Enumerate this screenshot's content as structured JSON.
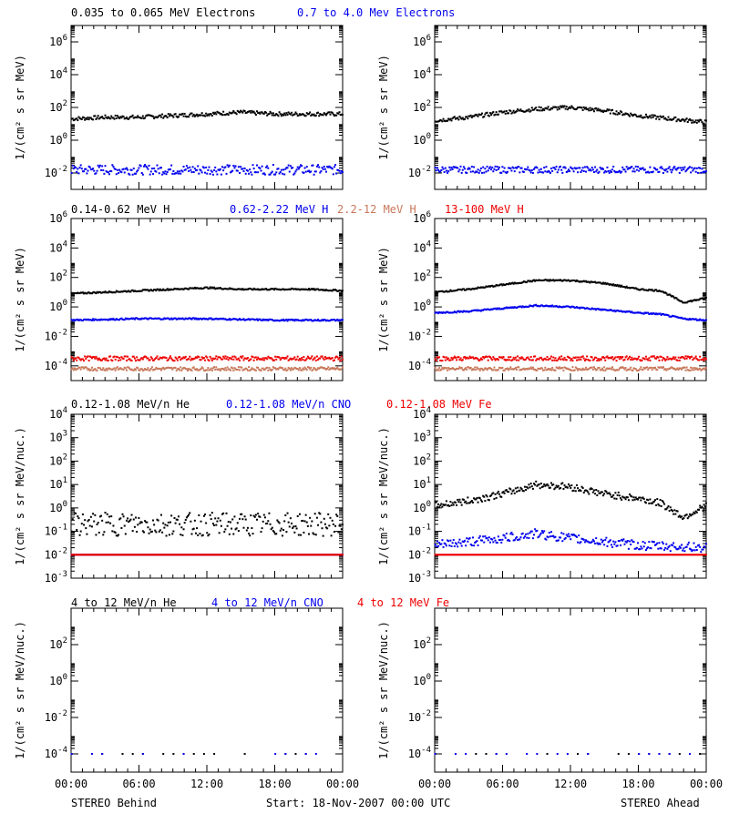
{
  "colors": {
    "black": "#000000",
    "blue": "#0000ee",
    "brown": "#c8785a",
    "red": "#ee0000"
  },
  "page": {
    "footer_left": "STEREO Behind",
    "footer_center": "Start: 18-Nov-2007 00:00 UTC",
    "footer_right": "STEREO Ahead",
    "x_tick_labels": [
      "00:00",
      "06:00",
      "12:00",
      "18:00",
      "00:00"
    ]
  },
  "chart_data": [
    {
      "type": "scatter",
      "row": "electrons",
      "legend": [
        {
          "text": "0.035 to 0.065 MeV Electrons",
          "color": "black"
        },
        {
          "text": "0.7 to 4.0 Mev Electrons",
          "color": "blue"
        }
      ],
      "ylabel": "1/(cm² s sr MeV)",
      "y_scale": "log",
      "ylim_exp": [
        -3,
        7
      ],
      "y_ticks": [
        {
          "b": "10",
          "e": "-2"
        },
        {
          "b": "10",
          "e": "0"
        },
        {
          "b": "10",
          "e": "2"
        },
        {
          "b": "10",
          "e": "4"
        },
        {
          "b": "10",
          "e": "6"
        }
      ],
      "panels": [
        {
          "name": "STEREO Behind",
          "series": [
            {
              "color": "black",
              "points_hours_log10": [
                [
                  0,
                  1.3
                ],
                [
                  3,
                  1.4
                ],
                [
                  6,
                  1.4
                ],
                [
                  9,
                  1.5
                ],
                [
                  12,
                  1.6
                ],
                [
                  15,
                  1.7
                ],
                [
                  18,
                  1.6
                ],
                [
                  21,
                  1.6
                ],
                [
                  24,
                  1.6
                ]
              ],
              "scatter": 0.12
            },
            {
              "color": "blue",
              "points_hours_log10": [
                [
                  0,
                  -1.8
                ],
                [
                  6,
                  -1.8
                ],
                [
                  12,
                  -1.8
                ],
                [
                  18,
                  -1.8
                ],
                [
                  24,
                  -1.8
                ]
              ],
              "scatter": 0.3
            }
          ]
        },
        {
          "name": "STEREO Ahead",
          "series": [
            {
              "color": "black",
              "points_hours_log10": [
                [
                  0,
                  1.2
                ],
                [
                  3,
                  1.4
                ],
                [
                  6,
                  1.7
                ],
                [
                  9,
                  1.9
                ],
                [
                  12,
                  2.0
                ],
                [
                  15,
                  1.8
                ],
                [
                  18,
                  1.5
                ],
                [
                  21,
                  1.3
                ],
                [
                  24,
                  1.1
                ]
              ],
              "scatter": 0.12
            },
            {
              "color": "blue",
              "points_hours_log10": [
                [
                  0,
                  -1.8
                ],
                [
                  6,
                  -1.8
                ],
                [
                  12,
                  -1.8
                ],
                [
                  18,
                  -1.8
                ],
                [
                  24,
                  -1.8
                ]
              ],
              "scatter": 0.2
            }
          ]
        }
      ]
    },
    {
      "type": "scatter",
      "row": "protons",
      "legend": [
        {
          "text": "0.14-0.62 MeV H",
          "color": "black"
        },
        {
          "text": "0.62-2.22 MeV H",
          "color": "blue"
        },
        {
          "text": "2.2-12 MeV H",
          "color": "brown"
        },
        {
          "text": "13-100 MeV H",
          "color": "red"
        }
      ],
      "ylabel": "1/(cm² s sr MeV)",
      "y_scale": "log",
      "ylim_exp": [
        -5,
        6
      ],
      "y_ticks": [
        {
          "b": "10",
          "e": "-4"
        },
        {
          "b": "10",
          "e": "-2"
        },
        {
          "b": "10",
          "e": "0"
        },
        {
          "b": "10",
          "e": "2"
        },
        {
          "b": "10",
          "e": "4"
        },
        {
          "b": "10",
          "e": "6"
        }
      ],
      "panels": [
        {
          "name": "STEREO Behind",
          "series": [
            {
              "color": "black",
              "points_hours_log10": [
                [
                  0,
                  0.9
                ],
                [
                  3,
                  1.0
                ],
                [
                  6,
                  1.1
                ],
                [
                  9,
                  1.2
                ],
                [
                  12,
                  1.3
                ],
                [
                  15,
                  1.2
                ],
                [
                  18,
                  1.2
                ],
                [
                  21,
                  1.2
                ],
                [
                  24,
                  1.1
                ]
              ],
              "scatter": 0.05
            },
            {
              "color": "blue",
              "points_hours_log10": [
                [
                  0,
                  -0.9
                ],
                [
                  6,
                  -0.8
                ],
                [
                  12,
                  -0.8
                ],
                [
                  18,
                  -0.9
                ],
                [
                  24,
                  -0.9
                ]
              ],
              "scatter": 0.05
            },
            {
              "color": "brown",
              "points_hours_log10": [
                [
                  0,
                  -4.2
                ],
                [
                  12,
                  -4.2
                ],
                [
                  24,
                  -4.2
                ]
              ],
              "scatter": 0.12
            },
            {
              "color": "red",
              "points_hours_log10": [
                [
                  0,
                  -3.5
                ],
                [
                  12,
                  -3.5
                ],
                [
                  24,
                  -3.5
                ]
              ],
              "scatter": 0.15
            }
          ]
        },
        {
          "name": "STEREO Ahead",
          "series": [
            {
              "color": "black",
              "points_hours_log10": [
                [
                  0,
                  1.0
                ],
                [
                  3,
                  1.2
                ],
                [
                  6,
                  1.5
                ],
                [
                  9,
                  1.8
                ],
                [
                  12,
                  1.8
                ],
                [
                  15,
                  1.6
                ],
                [
                  18,
                  1.2
                ],
                [
                  20,
                  1.1
                ],
                [
                  22,
                  0.3
                ],
                [
                  24,
                  0.6
                ]
              ],
              "scatter": 0.05
            },
            {
              "color": "blue",
              "points_hours_log10": [
                [
                  0,
                  -0.4
                ],
                [
                  3,
                  -0.3
                ],
                [
                  6,
                  -0.1
                ],
                [
                  9,
                  0.1
                ],
                [
                  12,
                  0.0
                ],
                [
                  15,
                  -0.2
                ],
                [
                  18,
                  -0.4
                ],
                [
                  20,
                  -0.5
                ],
                [
                  22,
                  -0.8
                ],
                [
                  24,
                  -0.9
                ]
              ],
              "scatter": 0.05
            },
            {
              "color": "brown",
              "points_hours_log10": [
                [
                  0,
                  -4.2
                ],
                [
                  12,
                  -4.2
                ],
                [
                  24,
                  -4.2
                ]
              ],
              "scatter": 0.12
            },
            {
              "color": "red",
              "points_hours_log10": [
                [
                  0,
                  -3.5
                ],
                [
                  12,
                  -3.5
                ],
                [
                  24,
                  -3.5
                ]
              ],
              "scatter": 0.15
            }
          ]
        }
      ]
    },
    {
      "type": "scatter",
      "row": "heavy_low",
      "legend": [
        {
          "text": "0.12-1.08 MeV/n He",
          "color": "black"
        },
        {
          "text": "0.12-1.08 MeV/n CNO",
          "color": "blue"
        },
        {
          "text": "0.12-1.08 MeV Fe",
          "color": "red"
        }
      ],
      "ylabel": "1/(cm² s sr MeV/nuc.)",
      "y_scale": "log",
      "ylim_exp": [
        -3,
        4
      ],
      "y_ticks": [
        {
          "b": "10",
          "e": "-3"
        },
        {
          "b": "10",
          "e": "-2"
        },
        {
          "b": "10",
          "e": "-1"
        },
        {
          "b": "10",
          "e": "0"
        },
        {
          "b": "10",
          "e": "1"
        },
        {
          "b": "10",
          "e": "2"
        },
        {
          "b": "10",
          "e": "3"
        },
        {
          "b": "10",
          "e": "4"
        }
      ],
      "panels": [
        {
          "name": "STEREO Behind",
          "series": [
            {
              "color": "black",
              "points_hours_log10": [
                [
                  0,
                  -0.7
                ],
                [
                  12,
                  -0.7
                ],
                [
                  24,
                  -0.7
                ]
              ],
              "scatter": 0.5
            },
            {
              "color": "blue",
              "points_hours_log10": [
                [
                  0,
                  -2.0
                ],
                [
                  24,
                  -2.0
                ]
              ],
              "scatter": 0.0
            },
            {
              "color": "red",
              "points_hours_log10": [
                [
                  0,
                  -2.0
                ],
                [
                  24,
                  -2.0
                ]
              ],
              "scatter": 0.0
            }
          ]
        },
        {
          "name": "STEREO Ahead",
          "series": [
            {
              "color": "black",
              "points_hours_log10": [
                [
                  0,
                  0.1
                ],
                [
                  3,
                  0.3
                ],
                [
                  6,
                  0.6
                ],
                [
                  9,
                  1.0
                ],
                [
                  12,
                  0.9
                ],
                [
                  15,
                  0.6
                ],
                [
                  18,
                  0.4
                ],
                [
                  20,
                  0.2
                ],
                [
                  22,
                  -0.4
                ],
                [
                  24,
                  0.1
                ]
              ],
              "scatter": 0.15
            },
            {
              "color": "blue",
              "points_hours_log10": [
                [
                  0,
                  -1.6
                ],
                [
                  6,
                  -1.3
                ],
                [
                  9,
                  -1.1
                ],
                [
                  12,
                  -1.3
                ],
                [
                  18,
                  -1.6
                ],
                [
                  24,
                  -1.7
                ]
              ],
              "scatter": 0.2
            },
            {
              "color": "red",
              "points_hours_log10": [
                [
                  0,
                  -2.0
                ],
                [
                  24,
                  -2.0
                ]
              ],
              "scatter": 0.0
            }
          ]
        }
      ]
    },
    {
      "type": "scatter",
      "row": "heavy_high",
      "legend": [
        {
          "text": "4 to 12 MeV/n He",
          "color": "black"
        },
        {
          "text": "4 to 12 MeV/n CNO",
          "color": "blue"
        },
        {
          "text": "4 to 12 MeV Fe",
          "color": "red"
        }
      ],
      "ylabel": "1/(cm² s sr MeV/nuc.)",
      "y_scale": "log",
      "ylim_exp": [
        -5,
        4
      ],
      "y_ticks": [
        {
          "b": "10",
          "e": "-4"
        },
        {
          "b": "10",
          "e": "-2"
        },
        {
          "b": "10",
          "e": "0"
        },
        {
          "b": "10",
          "e": "2"
        }
      ],
      "panels": [
        {
          "name": "STEREO Behind",
          "series": [
            {
              "color": "black",
              "points_hours_log10": [
                [
                  0,
                  -4.0
                ],
                [
                  24,
                  -4.0
                ]
              ],
              "scatter": 0.0,
              "sparse": true
            },
            {
              "color": "blue",
              "points_hours_log10": [
                [
                  0,
                  -4.0
                ],
                [
                  24,
                  -4.0
                ]
              ],
              "scatter": 0.0,
              "sparse": true
            }
          ]
        },
        {
          "name": "STEREO Ahead",
          "series": [
            {
              "color": "black",
              "points_hours_log10": [
                [
                  0,
                  -4.0
                ],
                [
                  24,
                  -4.0
                ]
              ],
              "scatter": 0.0,
              "sparse": true
            },
            {
              "color": "blue",
              "points_hours_log10": [
                [
                  0,
                  -4.0
                ],
                [
                  24,
                  -4.0
                ]
              ],
              "scatter": 0.0,
              "sparse": true
            }
          ]
        }
      ]
    }
  ]
}
